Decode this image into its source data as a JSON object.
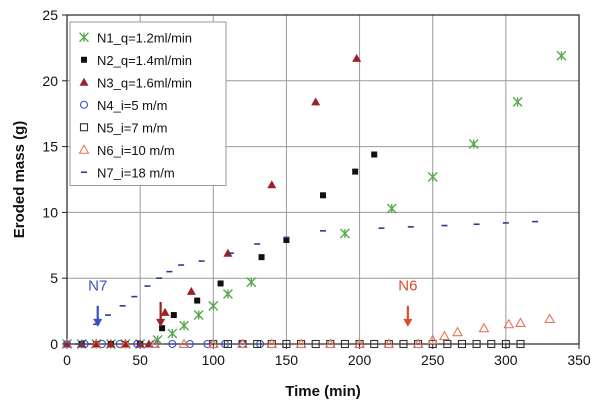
{
  "chart_data": {
    "type": "scatter",
    "xlabel": "Time (min)",
    "ylabel": "Eroded mass (g)",
    "xlim": [
      0,
      350
    ],
    "ylim": [
      0,
      25
    ],
    "xticks": [
      "0",
      "50",
      "100",
      "150",
      "200",
      "250",
      "300",
      "350"
    ],
    "yticks": [
      "0",
      "5",
      "10",
      "15",
      "20",
      "25"
    ],
    "grid": true,
    "legend_position": "top-left",
    "series": [
      {
        "name": "N1_q=1.2ml/min",
        "marker": "asterisk",
        "color": "#5aa64e",
        "points": [
          [
            0,
            0
          ],
          [
            10,
            0
          ],
          [
            20,
            0
          ],
          [
            30,
            0
          ],
          [
            40,
            0
          ],
          [
            50,
            0
          ],
          [
            62,
            0.3
          ],
          [
            72,
            0.8
          ],
          [
            80,
            1.4
          ],
          [
            90,
            2.2
          ],
          [
            100,
            2.9
          ],
          [
            110,
            3.8
          ],
          [
            126,
            4.7
          ],
          [
            190,
            8.4
          ],
          [
            222,
            10.3
          ],
          [
            250,
            12.7
          ],
          [
            278,
            15.2
          ],
          [
            308,
            18.4
          ],
          [
            338,
            21.9
          ]
        ]
      },
      {
        "name": "N2_q=1.4ml/min",
        "marker": "filled-square",
        "color": "#111111",
        "points": [
          [
            0,
            0
          ],
          [
            10,
            0
          ],
          [
            20,
            0
          ],
          [
            30,
            0
          ],
          [
            40,
            0
          ],
          [
            50,
            0
          ],
          [
            65,
            1.2
          ],
          [
            73,
            2.2
          ],
          [
            89,
            3.3
          ],
          [
            105,
            4.6
          ],
          [
            133,
            6.6
          ],
          [
            150,
            7.9
          ],
          [
            175,
            11.3
          ],
          [
            197,
            13.1
          ],
          [
            210,
            14.4
          ]
        ]
      },
      {
        "name": "N3_q=1.6ml/min",
        "marker": "filled-triangle",
        "color": "#9b2226",
        "points": [
          [
            0,
            0
          ],
          [
            10,
            0
          ],
          [
            20,
            0
          ],
          [
            30,
            0
          ],
          [
            40,
            0
          ],
          [
            50,
            0
          ],
          [
            56,
            0
          ],
          [
            67,
            2.4
          ],
          [
            85,
            4.0
          ],
          [
            110,
            6.9
          ],
          [
            140,
            12.1
          ],
          [
            170,
            18.4
          ],
          [
            198,
            21.7
          ]
        ]
      },
      {
        "name": "N4_i=5 m/m",
        "marker": "open-circle",
        "color": "#3b4fc4",
        "points": [
          [
            0,
            0
          ],
          [
            12,
            0
          ],
          [
            24,
            0
          ],
          [
            36,
            0
          ],
          [
            48,
            0
          ],
          [
            60,
            0
          ],
          [
            72,
            0
          ],
          [
            84,
            0
          ],
          [
            96,
            0
          ],
          [
            108,
            0
          ],
          [
            120,
            0
          ],
          [
            132,
            0
          ]
        ]
      },
      {
        "name": "N5_i=7 m/m",
        "marker": "open-square",
        "color": "#333333",
        "points": [
          [
            100,
            0
          ],
          [
            110,
            0
          ],
          [
            120,
            0
          ],
          [
            130,
            0
          ],
          [
            140,
            0
          ],
          [
            150,
            0
          ],
          [
            160,
            0
          ],
          [
            170,
            0
          ],
          [
            180,
            0
          ],
          [
            190,
            0
          ],
          [
            200,
            0
          ],
          [
            210,
            0
          ],
          [
            220,
            0
          ],
          [
            230,
            0
          ],
          [
            240,
            0
          ],
          [
            250,
            0
          ],
          [
            260,
            0
          ],
          [
            270,
            0
          ],
          [
            280,
            0
          ],
          [
            290,
            0
          ],
          [
            300,
            0
          ],
          [
            310,
            0
          ]
        ]
      },
      {
        "name": "N6_i=10 m/m",
        "marker": "open-triangle",
        "color": "#e8745a",
        "points": [
          [
            0,
            0
          ],
          [
            20,
            0
          ],
          [
            40,
            0
          ],
          [
            60,
            0
          ],
          [
            80,
            0
          ],
          [
            100,
            0
          ],
          [
            120,
            0
          ],
          [
            140,
            0
          ],
          [
            160,
            0
          ],
          [
            180,
            0
          ],
          [
            200,
            0
          ],
          [
            220,
            0
          ],
          [
            240,
            0
          ],
          [
            250,
            0.3
          ],
          [
            258,
            0.6
          ],
          [
            267,
            0.9
          ],
          [
            285,
            1.2
          ],
          [
            302,
            1.5
          ],
          [
            310,
            1.6
          ],
          [
            330,
            1.9
          ]
        ]
      },
      {
        "name": "N7_i=18 m/m",
        "marker": "dash",
        "color": "#2a3d8f",
        "points": [
          [
            0,
            0
          ],
          [
            8,
            0
          ],
          [
            16,
            0
          ],
          [
            20,
            1.5
          ],
          [
            28,
            2.2
          ],
          [
            38,
            2.9
          ],
          [
            46,
            3.6
          ],
          [
            55,
            4.4
          ],
          [
            63,
            5.0
          ],
          [
            70,
            5.5
          ],
          [
            78,
            6.0
          ],
          [
            92,
            6.3
          ],
          [
            112,
            6.9
          ],
          [
            130,
            7.6
          ],
          [
            150,
            8.1
          ],
          [
            175,
            8.6
          ],
          [
            215,
            8.8
          ],
          [
            235,
            8.9
          ],
          [
            258,
            9.0
          ],
          [
            280,
            9.1
          ],
          [
            300,
            9.2
          ],
          [
            320,
            9.3
          ]
        ]
      }
    ],
    "annotations": [
      {
        "text": "N7",
        "x": 21,
        "y_text": 3.9,
        "y_arrow_top": 2.9,
        "y_arrow_tip": 1.3,
        "color": "#3b4fc4"
      },
      {
        "text": "",
        "x": 64,
        "y_text": null,
        "y_arrow_top": 3.2,
        "y_arrow_tip": 1.3,
        "color": "#9b2226"
      },
      {
        "text": "N6",
        "x": 233,
        "y_text": 3.9,
        "y_arrow_top": 2.9,
        "y_arrow_tip": 1.3,
        "color": "#e04a2a"
      }
    ]
  }
}
